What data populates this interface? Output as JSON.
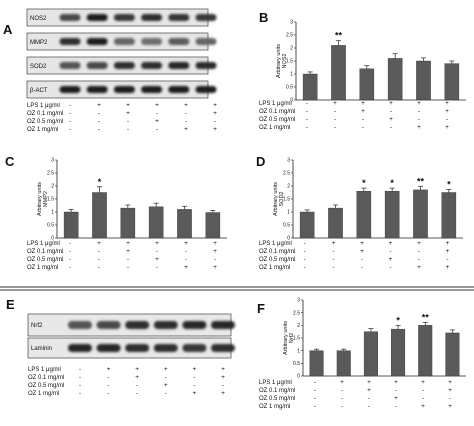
{
  "panel_labels": {
    "A": "A",
    "B": "B",
    "C": "C",
    "D": "D",
    "E": "E",
    "F": "F"
  },
  "blots": {
    "A": {
      "rows": [
        {
          "name": "NOS2",
          "bands": [
            0.7,
            0.95,
            0.8,
            0.85,
            0.82,
            0.8
          ]
        },
        {
          "name": "MMP2",
          "bands": [
            0.85,
            0.95,
            0.55,
            0.5,
            0.6,
            0.55
          ]
        },
        {
          "name": "SOD2",
          "bands": [
            0.65,
            0.7,
            0.85,
            0.85,
            0.9,
            0.88
          ]
        },
        {
          "name": "β-ACT",
          "bands": [
            0.95,
            0.95,
            0.95,
            0.95,
            0.95,
            0.95
          ]
        }
      ]
    },
    "E": {
      "rows": [
        {
          "name": "Nrf2",
          "bands": [
            0.65,
            0.7,
            0.85,
            0.85,
            0.9,
            0.9
          ]
        },
        {
          "name": "Laminin",
          "bands": [
            0.9,
            0.9,
            0.85,
            0.85,
            0.8,
            0.85
          ]
        }
      ]
    }
  },
  "conditions": {
    "labels": [
      "LPS  1 μg/ml",
      "OZ 0.1 mg/ml",
      "OZ 0.5 mg/ml",
      "OZ    1 mg/ml"
    ],
    "matrix": [
      [
        "-",
        "+",
        "+",
        "+",
        "+",
        "+"
      ],
      [
        "-",
        "-",
        "+",
        "-",
        "-",
        "+"
      ],
      [
        "-",
        "-",
        "-",
        "+",
        "-",
        "-"
      ],
      [
        "-",
        "-",
        "-",
        "-",
        "+",
        "+"
      ]
    ]
  },
  "chart_data": [
    {
      "panel": "B",
      "type": "bar",
      "ylabel_lines": [
        "Arbitrary units",
        "NOS2"
      ],
      "ylim": [
        0,
        3
      ],
      "yticks": [
        "0",
        "0.5",
        "1",
        "1.5",
        "2",
        "2.5",
        "3"
      ],
      "values": [
        1.0,
        2.1,
        1.2,
        1.6,
        1.5,
        1.4
      ],
      "errors": [
        0.08,
        0.18,
        0.12,
        0.18,
        0.12,
        0.1
      ],
      "significance": [
        "",
        "**",
        "",
        "",
        "",
        ""
      ]
    },
    {
      "panel": "C",
      "type": "bar",
      "ylabel_lines": [
        "Arbitrary units",
        "MMP2"
      ],
      "ylim": [
        0,
        3
      ],
      "yticks": [
        "0",
        "0.5",
        "1",
        "1.5",
        "2",
        "2.5",
        "3"
      ],
      "values": [
        1.0,
        1.75,
        1.15,
        1.2,
        1.1,
        0.98
      ],
      "errors": [
        0.1,
        0.22,
        0.12,
        0.14,
        0.12,
        0.08
      ],
      "significance": [
        "",
        "*",
        "",
        "",
        "",
        ""
      ]
    },
    {
      "panel": "D",
      "type": "bar",
      "ylabel_lines": [
        "Arbitrary units",
        "SOD2"
      ],
      "ylim": [
        0,
        3
      ],
      "yticks": [
        "0",
        "0.5",
        "1",
        "1.5",
        "2",
        "2.5",
        "3"
      ],
      "values": [
        1.0,
        1.15,
        1.8,
        1.8,
        1.85,
        1.75
      ],
      "errors": [
        0.08,
        0.12,
        0.12,
        0.12,
        0.14,
        0.12
      ],
      "significance": [
        "",
        "",
        "*",
        "*",
        "**",
        "*"
      ]
    },
    {
      "panel": "F",
      "type": "bar",
      "ylabel_lines": [
        "Arbitrary units",
        "Nrf2"
      ],
      "ylim": [
        0,
        3
      ],
      "yticks": [
        "0",
        "0.5",
        "1",
        "1.5",
        "2",
        "2.5",
        "3"
      ],
      "values": [
        1.0,
        1.0,
        1.75,
        1.85,
        2.0,
        1.7
      ],
      "errors": [
        0.06,
        0.06,
        0.12,
        0.14,
        0.12,
        0.12
      ],
      "significance": [
        "",
        "",
        "",
        "*",
        "**",
        ""
      ]
    }
  ]
}
